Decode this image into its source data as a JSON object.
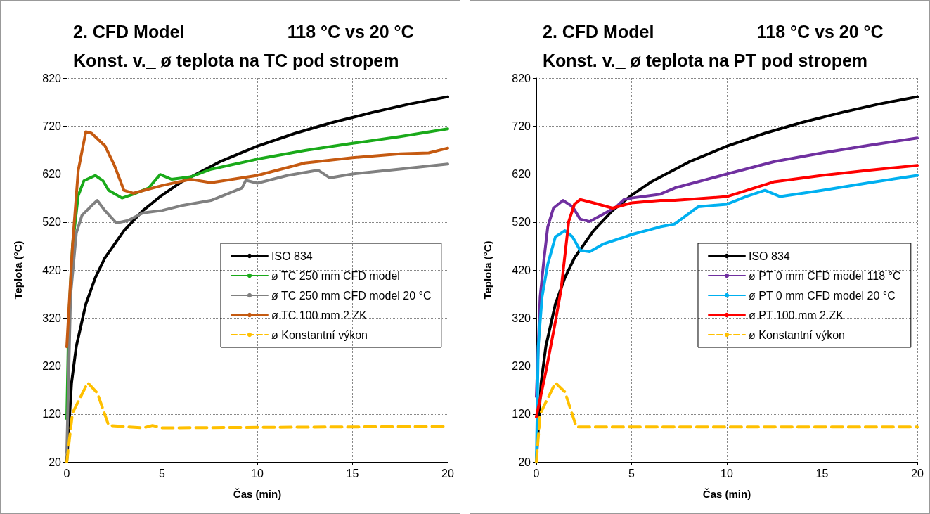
{
  "chart_data": [
    {
      "type": "line",
      "title": "2. CFD Model",
      "subtitle": "Konst. v._ ø teplota na TC pod stropem",
      "annotations": [
        "118 °C vs 20 °C"
      ],
      "xlabel": "Čas (min)",
      "ylabel": "Teplota (°C)",
      "xlim": [
        0,
        20
      ],
      "xticks": [
        0,
        5,
        10,
        15,
        20
      ],
      "ylim": [
        20,
        820
      ],
      "yticks": [
        20,
        120,
        220,
        320,
        420,
        520,
        620,
        720,
        820
      ],
      "grid": true,
      "legend": "right",
      "marker": "none",
      "series": [
        {
          "name": "ISO 834",
          "color": "#000000",
          "x": [
            0,
            0.25,
            0.5,
            1,
            1.5,
            2,
            3,
            4,
            5,
            6,
            8,
            10,
            12,
            14,
            16,
            18,
            20
          ],
          "values": [
            20,
            185,
            261,
            349,
            404,
            445,
            502,
            544,
            576,
            603,
            645,
            678,
            705,
            728,
            748,
            766,
            781
          ]
        },
        {
          "name": "ø TC 250 mm CFD model",
          "color": "#1aaa1a",
          "x": [
            0,
            0.1,
            0.3,
            0.6,
            0.9,
            1.5,
            1.9,
            2.2,
            2.9,
            3.5,
            4.3,
            4.9,
            5.5,
            6.5,
            7.57,
            10,
            12.5,
            15,
            17.5,
            20
          ],
          "values": [
            110,
            315,
            471,
            575,
            606,
            617,
            606,
            586,
            570,
            578,
            591,
            619,
            609,
            614,
            630,
            651,
            669,
            684,
            698,
            714
          ]
        },
        {
          "name": "ø TC 250 mm CFD model 20 °C",
          "color": "#808080",
          "x": [
            0,
            0.2,
            0.5,
            0.8,
            1.3,
            1.6,
            2,
            2.6,
            3.2,
            4,
            5,
            6,
            7.57,
            9.2,
            9.4,
            10,
            11.6,
            13.2,
            13.8,
            15,
            17.4,
            20
          ],
          "values": [
            40,
            367,
            497,
            534,
            554,
            565,
            544,
            518,
            523,
            539,
            544,
            554,
            565,
            591,
            607,
            601,
            617,
            628,
            612,
            620,
            630,
            641
          ]
        },
        {
          "name": "ø TC 100 mm 2.ZK",
          "color": "#c55a11",
          "x": [
            0,
            0.3,
            0.6,
            1,
            1.3,
            2,
            2.5,
            3,
            3.5,
            5,
            6.5,
            7.57,
            10,
            12.5,
            15,
            17.5,
            19,
            20
          ],
          "values": [
            260,
            471,
            627,
            708,
            705,
            679,
            638,
            586,
            580,
            596,
            609,
            602,
            617,
            643,
            654,
            662,
            664,
            674
          ]
        },
        {
          "name": "ø Konstantní výkon",
          "color": "#ffc000",
          "line_style": "dashed",
          "x": [
            0,
            0.3,
            1.1,
            1.6,
            2.2,
            4,
            4.5,
            5,
            20
          ],
          "values": [
            20,
            122,
            185,
            164,
            96,
            91,
            96,
            91,
            94
          ]
        }
      ]
    },
    {
      "type": "line",
      "title": "2. CFD Model",
      "subtitle": "Konst. v._ ø teplota na PT pod stropem",
      "annotations": [
        "118 °C vs 20 °C"
      ],
      "xlabel": "Čas (min)",
      "ylabel": "Teplota (°C)",
      "xlim": [
        0,
        20
      ],
      "xticks": [
        0,
        5,
        10,
        15,
        20
      ],
      "ylim": [
        20,
        820
      ],
      "yticks": [
        20,
        120,
        220,
        320,
        420,
        520,
        620,
        720,
        820
      ],
      "grid": true,
      "legend": "right",
      "marker": "none",
      "series": [
        {
          "name": "ISO 834",
          "color": "#000000",
          "x": [
            0,
            0.25,
            0.5,
            1,
            1.5,
            2,
            3,
            4,
            5,
            6,
            8,
            10,
            12,
            14,
            16,
            18,
            20
          ],
          "values": [
            20,
            185,
            261,
            349,
            404,
            445,
            502,
            544,
            576,
            603,
            645,
            678,
            705,
            728,
            748,
            766,
            781
          ]
        },
        {
          "name": "ø PT 0 mm CFD model 118 °C",
          "color": "#7030a0",
          "x": [
            0,
            0.2,
            0.4,
            0.6,
            0.9,
            1.4,
            1.9,
            2.3,
            2.8,
            3.5,
            4.2,
            4.6,
            5,
            6.5,
            7.27,
            10,
            12.5,
            15,
            17.5,
            20
          ],
          "values": [
            156,
            364,
            442,
            510,
            549,
            565,
            552,
            526,
            521,
            536,
            552,
            567,
            570,
            578,
            591,
            620,
            646,
            664,
            680,
            695
          ]
        },
        {
          "name": "ø PT 0 mm CFD model 20 °C",
          "color": "#00b0f0",
          "x": [
            0,
            0.1,
            0.3,
            0.6,
            1,
            1.5,
            1.9,
            2.3,
            2.8,
            3.5,
            4.5,
            5,
            6.5,
            7.27,
            8.5,
            10,
            11,
            12,
            12.8,
            15,
            17.5,
            20
          ],
          "values": [
            20,
            260,
            364,
            432,
            489,
            502,
            489,
            461,
            458,
            474,
            487,
            494,
            510,
            516,
            552,
            557,
            573,
            586,
            573,
            586,
            602,
            617
          ]
        },
        {
          "name": "ø PT 100 mm 2.ZK",
          "color": "#ff0000",
          "x": [
            0,
            0.5,
            1,
            1.3,
            1.7,
            2,
            2.3,
            3,
            4,
            5,
            6.5,
            7.27,
            10,
            12.5,
            15,
            17.5,
            20
          ],
          "values": [
            114,
            208,
            312,
            380,
            521,
            557,
            567,
            560,
            549,
            560,
            565,
            565,
            573,
            604,
            617,
            628,
            638
          ]
        },
        {
          "name": "ø Konstantní výkon",
          "color": "#ffc000",
          "line_style": "dashed",
          "x": [
            0,
            0.2,
            1,
            1.5,
            2.1,
            4.5,
            20
          ],
          "values": [
            20,
            120,
            185,
            166,
            93,
            93,
            93
          ]
        }
      ]
    }
  ]
}
